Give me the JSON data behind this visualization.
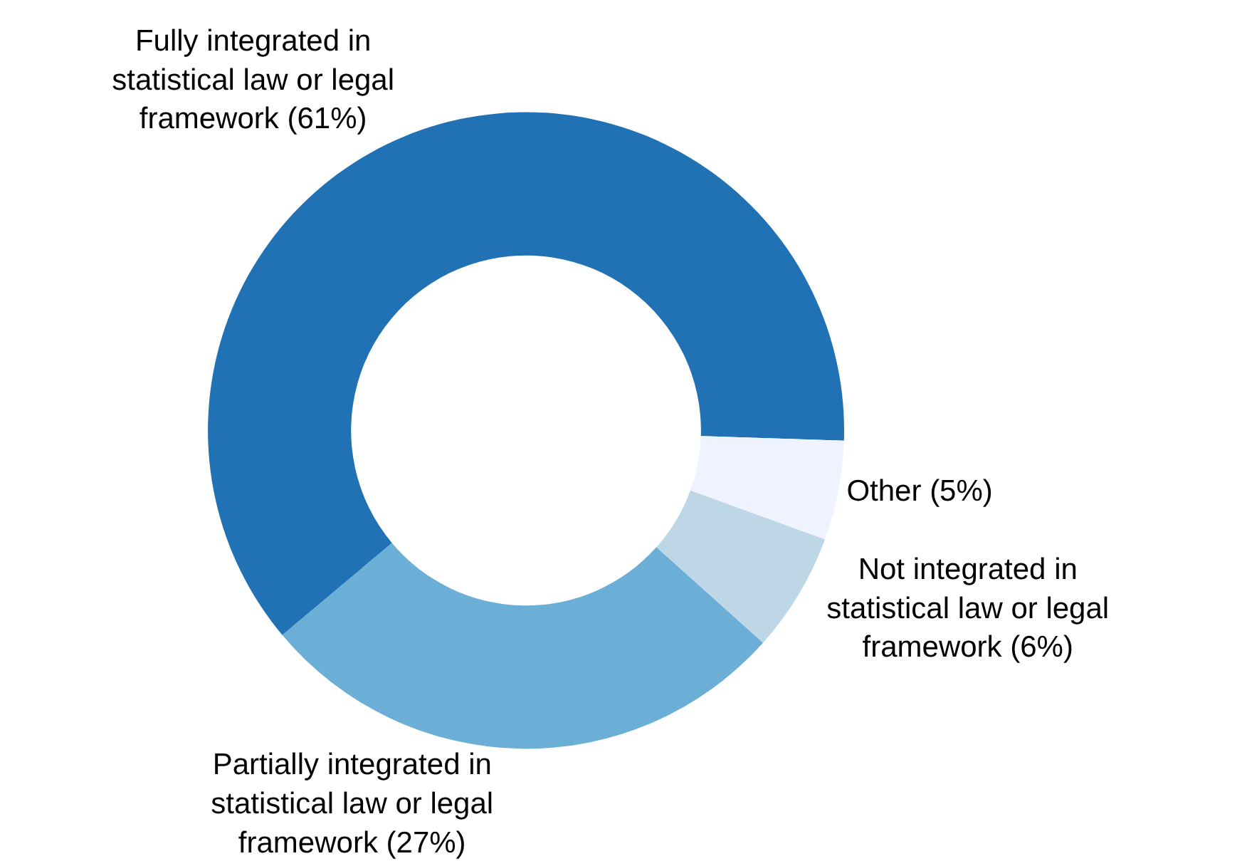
{
  "chart_data": {
    "type": "donut",
    "categories": [
      "Fully integrated in statistical law or legal framework (61%)",
      "Partially integrated in statistical law or legal framework (27%)",
      "Not integrated in statistical law or legal framework (6%)",
      "Other (5%)"
    ],
    "values": [
      61,
      27,
      6,
      5
    ],
    "colors": [
      "#2171b5",
      "#6baed6",
      "#bdd7e7",
      "#eff3ff"
    ],
    "legend": false
  }
}
